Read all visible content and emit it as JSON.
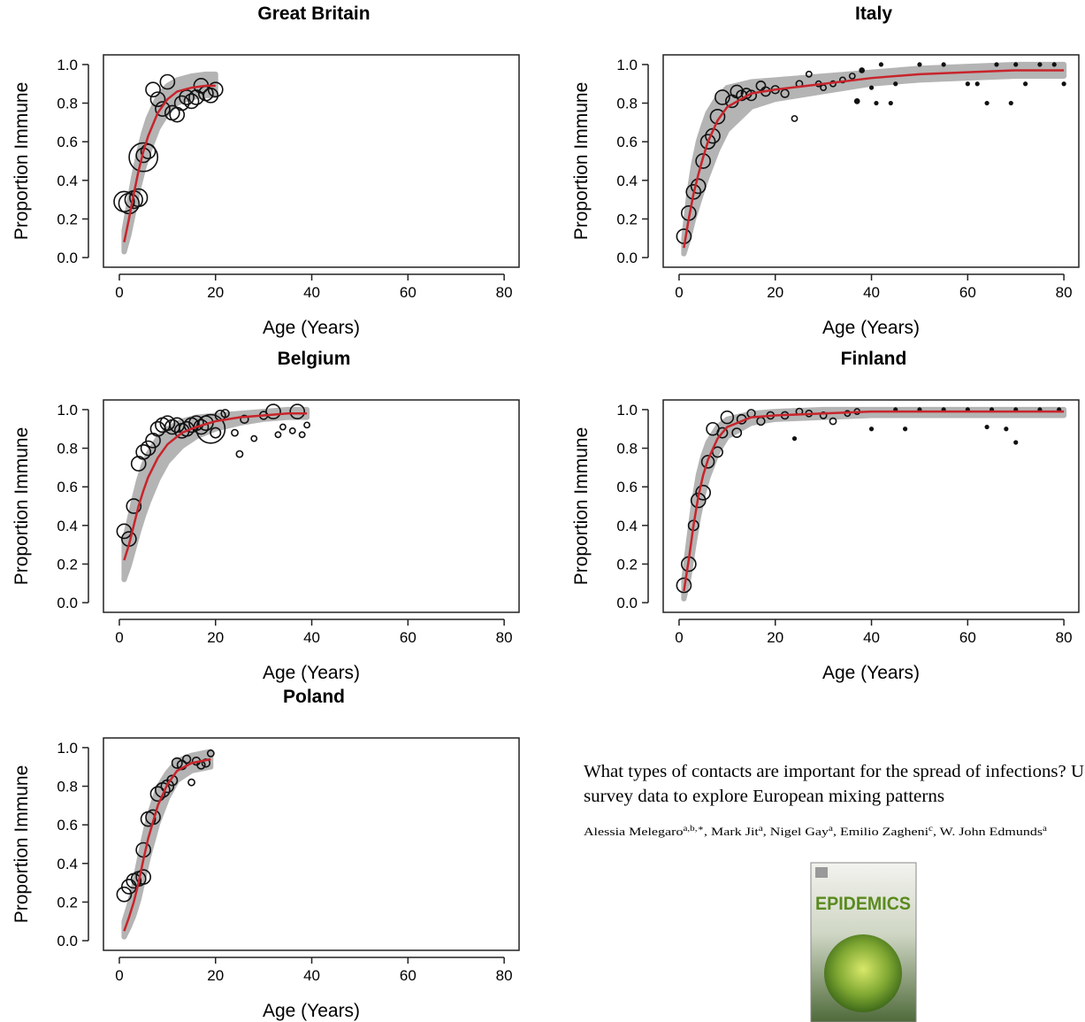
{
  "chart_data": [
    {
      "type": "scatter",
      "title": "Great Britain",
      "x_label": "Age (Years)",
      "y_label": "Proportion Immune",
      "xlim": [
        -3.3,
        83.1
      ],
      "ylim": [
        -0.05,
        1.05
      ],
      "xticks": [
        0,
        20,
        40,
        60,
        80
      ],
      "yticks": [
        {
          "value": 0,
          "label": "0.0"
        },
        {
          "value": 0.2,
          "label": "0.2"
        },
        {
          "value": 0.4,
          "label": "0.4"
        },
        {
          "value": 0.6,
          "label": "0.6"
        },
        {
          "value": 0.8,
          "label": "0.8"
        },
        {
          "value": 1,
          "label": "1.0"
        }
      ],
      "point_color": "#111111",
      "line_color": "#c8242b",
      "band_color": "#b4b4b4",
      "points": {
        "x": [
          1,
          2,
          3,
          4,
          5,
          5,
          6,
          7,
          8,
          9,
          10,
          11,
          12,
          13,
          14,
          15,
          16,
          17,
          18,
          19,
          20
        ],
        "y": [
          0.29,
          0.28,
          0.3,
          0.31,
          0.52,
          0.53,
          0.55,
          0.87,
          0.82,
          0.77,
          0.91,
          0.75,
          0.74,
          0.8,
          0.83,
          0.81,
          0.83,
          0.89,
          0.85,
          0.84,
          0.87
        ],
        "sizes": [
          40,
          40,
          30,
          30,
          80,
          20,
          20,
          20,
          20,
          20,
          20,
          20,
          20,
          20,
          20,
          20,
          20,
          20,
          20,
          20,
          20
        ]
      },
      "fit": {
        "x": [
          1,
          2,
          3,
          4,
          5,
          6,
          8,
          10,
          12,
          15,
          18,
          20
        ],
        "values": [
          0.08,
          0.2,
          0.33,
          0.45,
          0.55,
          0.63,
          0.75,
          0.82,
          0.86,
          0.88,
          0.89,
          0.89
        ],
        "lower": [
          0.03,
          0.12,
          0.24,
          0.36,
          0.46,
          0.54,
          0.67,
          0.75,
          0.8,
          0.83,
          0.84,
          0.84
        ],
        "upper": [
          0.14,
          0.28,
          0.42,
          0.54,
          0.64,
          0.72,
          0.83,
          0.89,
          0.92,
          0.94,
          0.95,
          0.95
        ]
      }
    },
    {
      "type": "scatter",
      "title": "Italy",
      "x_label": "Age (Years)",
      "y_label": "Proportion Immune",
      "xlim": [
        -3.3,
        83.1
      ],
      "ylim": [
        -0.05,
        1.05
      ],
      "xticks": [
        0,
        20,
        40,
        60,
        80
      ],
      "yticks": [
        {
          "value": 0,
          "label": "0.0"
        },
        {
          "value": 0.2,
          "label": "0.2"
        },
        {
          "value": 0.4,
          "label": "0.4"
        },
        {
          "value": 0.6,
          "label": "0.6"
        },
        {
          "value": 0.8,
          "label": "0.8"
        },
        {
          "value": 1,
          "label": "1.0"
        }
      ],
      "point_color": "#111111",
      "line_color": "#c8242b",
      "band_color": "#b4b4b4",
      "points": {
        "x": [
          1,
          2,
          3,
          4,
          5,
          6,
          7,
          8,
          9,
          11,
          12,
          13,
          14,
          15,
          17,
          18,
          20,
          22,
          24,
          25,
          27,
          29,
          30,
          32,
          34,
          36,
          37,
          38,
          40,
          41,
          44,
          45,
          42,
          50,
          55,
          60,
          62,
          64,
          66,
          69,
          70,
          72,
          75,
          78,
          80
        ],
        "y": [
          0.11,
          0.23,
          0.34,
          0.37,
          0.5,
          0.6,
          0.63,
          0.73,
          0.83,
          0.81,
          0.86,
          0.84,
          0.85,
          0.84,
          0.89,
          0.86,
          0.87,
          0.85,
          0.72,
          0.9,
          0.95,
          0.9,
          0.88,
          0.9,
          0.92,
          0.94,
          0.81,
          0.97,
          0.88,
          0.8,
          0.8,
          0.9,
          1,
          1,
          1,
          0.9,
          0.9,
          0.8,
          1,
          0.8,
          1,
          0.9,
          1,
          1,
          0.9
        ],
        "sizes": [
          20,
          20,
          20,
          20,
          20,
          20,
          20,
          20,
          20,
          15,
          15,
          10,
          10,
          10,
          8,
          8,
          6,
          6,
          3,
          4,
          3,
          3,
          3,
          3,
          3,
          3,
          2,
          2,
          1,
          1,
          1,
          1,
          1,
          1,
          1,
          1,
          1,
          1,
          1,
          1,
          1,
          1,
          1,
          1,
          1
        ]
      },
      "fit": {
        "x": [
          1,
          2,
          3,
          4,
          5,
          6,
          8,
          10,
          15,
          20,
          30,
          40,
          50,
          60,
          70,
          80
        ],
        "values": [
          0.05,
          0.2,
          0.33,
          0.43,
          0.52,
          0.6,
          0.71,
          0.78,
          0.85,
          0.87,
          0.9,
          0.93,
          0.95,
          0.96,
          0.97,
          0.97
        ],
        "lower": [
          0.02,
          0.1,
          0.2,
          0.28,
          0.36,
          0.43,
          0.56,
          0.66,
          0.78,
          0.82,
          0.86,
          0.9,
          0.92,
          0.93,
          0.94,
          0.94
        ],
        "upper": [
          0.1,
          0.32,
          0.48,
          0.6,
          0.68,
          0.75,
          0.83,
          0.88,
          0.91,
          0.92,
          0.94,
          0.96,
          0.98,
          0.99,
          1,
          1
        ]
      }
    },
    {
      "type": "scatter",
      "title": "Belgium",
      "x_label": "Age (Years)",
      "y_label": "Proportion Immune",
      "xlim": [
        -3.3,
        83.1
      ],
      "ylim": [
        -0.05,
        1.05
      ],
      "xticks": [
        0,
        20,
        40,
        60,
        80
      ],
      "yticks": [
        {
          "value": 0,
          "label": "0.0"
        },
        {
          "value": 0.2,
          "label": "0.2"
        },
        {
          "value": 0.4,
          "label": "0.4"
        },
        {
          "value": 0.6,
          "label": "0.6"
        },
        {
          "value": 0.8,
          "label": "0.8"
        },
        {
          "value": 1,
          "label": "1.0"
        }
      ],
      "point_color": "#111111",
      "line_color": "#c8242b",
      "band_color": "#b4b4b4",
      "points": {
        "x": [
          1,
          2,
          3,
          4,
          5,
          6,
          7,
          8,
          9,
          10,
          11,
          12,
          13,
          14,
          15,
          16,
          17,
          18,
          19,
          20,
          21,
          22,
          24,
          25,
          26,
          28,
          30,
          32,
          33,
          34,
          36,
          37,
          38,
          39
        ],
        "y": [
          0.37,
          0.33,
          0.5,
          0.72,
          0.78,
          0.8,
          0.84,
          0.9,
          0.92,
          0.93,
          0.91,
          0.92,
          0.89,
          0.9,
          0.92,
          0.93,
          0.91,
          0.93,
          0.9,
          0.88,
          0.97,
          0.98,
          0.88,
          0.77,
          0.95,
          0.85,
          0.97,
          0.99,
          0.87,
          0.91,
          0.89,
          0.99,
          0.87,
          0.92
        ],
        "sizes": [
          20,
          20,
          20,
          20,
          20,
          20,
          20,
          20,
          20,
          20,
          20,
          20,
          20,
          20,
          20,
          20,
          20,
          20,
          80,
          10,
          10,
          6,
          4,
          4,
          6,
          3,
          6,
          20,
          3,
          3,
          3,
          20,
          3,
          3
        ]
      },
      "fit": {
        "x": [
          1,
          2,
          3,
          4,
          5,
          6,
          8,
          10,
          13,
          16,
          20,
          25,
          30,
          35,
          39
        ],
        "values": [
          0.22,
          0.3,
          0.4,
          0.5,
          0.58,
          0.65,
          0.75,
          0.82,
          0.88,
          0.91,
          0.94,
          0.96,
          0.97,
          0.98,
          0.98
        ],
        "lower": [
          0.12,
          0.19,
          0.28,
          0.37,
          0.45,
          0.52,
          0.64,
          0.73,
          0.81,
          0.86,
          0.9,
          0.93,
          0.95,
          0.96,
          0.96
        ],
        "upper": [
          0.32,
          0.42,
          0.53,
          0.63,
          0.71,
          0.77,
          0.85,
          0.9,
          0.94,
          0.96,
          0.97,
          0.98,
          0.99,
          1,
          1
        ]
      }
    },
    {
      "type": "scatter",
      "title": "Finland",
      "x_label": "Age (Years)",
      "y_label": "Proportion Immune",
      "xlim": [
        -3.3,
        83.1
      ],
      "ylim": [
        -0.05,
        1.05
      ],
      "xticks": [
        0,
        20,
        40,
        60,
        80
      ],
      "yticks": [
        {
          "value": 0,
          "label": "0.0"
        },
        {
          "value": 0.2,
          "label": "0.2"
        },
        {
          "value": 0.4,
          "label": "0.4"
        },
        {
          "value": 0.6,
          "label": "0.6"
        },
        {
          "value": 0.8,
          "label": "0.8"
        },
        {
          "value": 1,
          "label": "1.0"
        }
      ],
      "point_color": "#111111",
      "line_color": "#c8242b",
      "band_color": "#b4b4b4",
      "points": {
        "x": [
          1,
          2,
          3,
          4,
          5,
          6,
          7,
          8,
          9,
          10,
          12,
          13,
          15,
          17,
          19,
          22,
          24,
          25,
          27,
          30,
          32,
          35,
          37,
          40,
          47,
          45,
          50,
          55,
          60,
          65,
          70,
          75,
          79,
          64,
          68,
          70
        ],
        "y": [
          0.09,
          0.2,
          0.4,
          0.53,
          0.57,
          0.73,
          0.9,
          0.78,
          0.88,
          0.96,
          0.88,
          0.95,
          0.98,
          0.94,
          0.97,
          0.97,
          0.85,
          0.99,
          0.98,
          0.97,
          0.94,
          0.98,
          0.99,
          0.9,
          0.9,
          1,
          1,
          1,
          1,
          1,
          1,
          1,
          1,
          0.91,
          0.9,
          0.83
        ],
        "sizes": [
          20,
          20,
          10,
          20,
          20,
          15,
          15,
          10,
          10,
          15,
          8,
          8,
          6,
          6,
          5,
          5,
          1,
          4,
          4,
          4,
          4,
          3,
          3,
          1,
          1,
          1,
          1,
          1,
          1,
          1,
          1,
          1,
          1,
          1,
          1,
          1
        ]
      },
      "fit": {
        "x": [
          1,
          2,
          3,
          4,
          5,
          6,
          8,
          10,
          15,
          20,
          30,
          40,
          60,
          80
        ],
        "values": [
          0.06,
          0.22,
          0.4,
          0.55,
          0.66,
          0.74,
          0.85,
          0.91,
          0.96,
          0.97,
          0.98,
          0.99,
          0.99,
          0.99
        ],
        "lower": [
          0.02,
          0.13,
          0.29,
          0.44,
          0.56,
          0.65,
          0.78,
          0.86,
          0.93,
          0.95,
          0.96,
          0.97,
          0.97,
          0.97
        ],
        "upper": [
          0.12,
          0.32,
          0.51,
          0.66,
          0.76,
          0.83,
          0.91,
          0.95,
          0.98,
          0.99,
          1,
          1,
          1,
          1
        ]
      }
    },
    {
      "type": "scatter",
      "title": "Poland",
      "x_label": "Age (Years)",
      "y_label": "Proportion Immune",
      "xlim": [
        -3.3,
        83.1
      ],
      "ylim": [
        -0.05,
        1.05
      ],
      "xticks": [
        0,
        20,
        40,
        60,
        80
      ],
      "yticks": [
        {
          "value": 0,
          "label": "0.0"
        },
        {
          "value": 0.2,
          "label": "0.2"
        },
        {
          "value": 0.4,
          "label": "0.4"
        },
        {
          "value": 0.6,
          "label": "0.6"
        },
        {
          "value": 0.8,
          "label": "0.8"
        },
        {
          "value": 1,
          "label": "1.0"
        }
      ],
      "point_color": "#111111",
      "line_color": "#c8242b",
      "band_color": "#b4b4b4",
      "points": {
        "x": [
          1,
          2,
          3,
          4,
          5,
          5,
          6,
          7,
          8,
          9,
          10,
          11,
          12,
          13,
          14,
          15,
          16,
          17,
          18,
          19
        ],
        "y": [
          0.24,
          0.28,
          0.31,
          0.32,
          0.33,
          0.47,
          0.63,
          0.64,
          0.76,
          0.78,
          0.8,
          0.83,
          0.92,
          0.91,
          0.94,
          0.82,
          0.93,
          0.91,
          0.92,
          0.97
        ],
        "sizes": [
          20,
          20,
          20,
          20,
          20,
          20,
          20,
          20,
          20,
          20,
          15,
          10,
          10,
          8,
          6,
          4,
          6,
          6,
          6,
          4
        ]
      },
      "fit": {
        "x": [
          1,
          2,
          3,
          4,
          5,
          6,
          8,
          10,
          12,
          15,
          19
        ],
        "values": [
          0.05,
          0.12,
          0.2,
          0.3,
          0.42,
          0.53,
          0.7,
          0.81,
          0.88,
          0.92,
          0.94
        ],
        "lower": [
          0.02,
          0.07,
          0.13,
          0.21,
          0.32,
          0.43,
          0.61,
          0.74,
          0.83,
          0.88,
          0.9
        ],
        "upper": [
          0.1,
          0.18,
          0.28,
          0.4,
          0.52,
          0.63,
          0.79,
          0.87,
          0.93,
          0.96,
          0.98
        ]
      }
    }
  ],
  "paper": {
    "title_lines": [
      "What types of contacts are important for the spread of infections? U",
      "survey data to explore European mixing patterns"
    ],
    "authors": [
      {
        "name": "Alessia Melegaro",
        "affil": "a,b,∗"
      },
      {
        "name": ", Mark Jit",
        "affil": "a"
      },
      {
        "name": ", Nigel Gay",
        "affil": "a"
      },
      {
        "name": ", Emilio Zagheni",
        "affil": "c"
      },
      {
        "name": ", W. John Edmunds",
        "affil": "a"
      }
    ],
    "cover": {
      "title": "EPIDEMICS"
    }
  }
}
